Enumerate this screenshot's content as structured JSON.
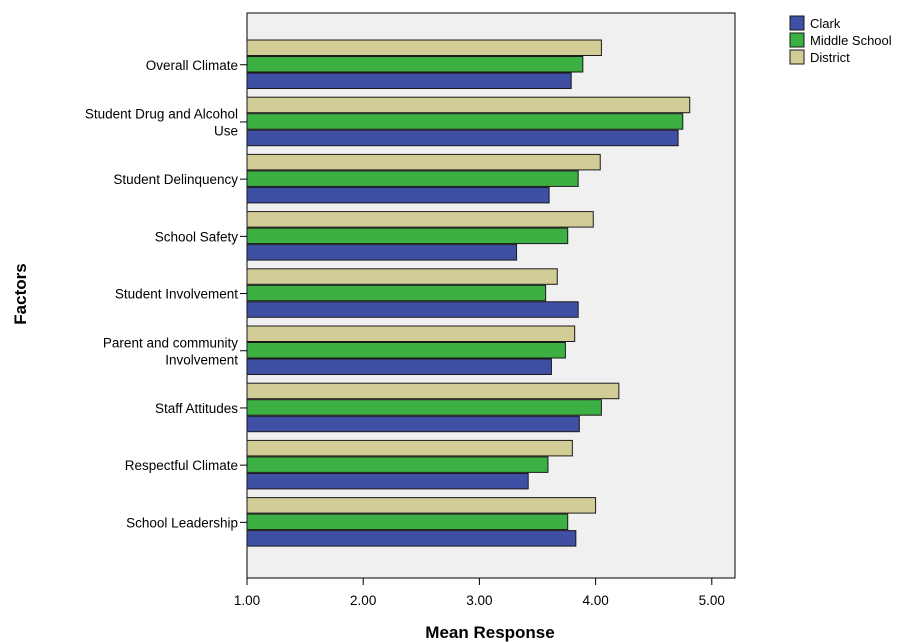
{
  "chart_data": {
    "type": "bar",
    "orientation": "horizontal",
    "title": "",
    "xlabel": "Mean Response",
    "ylabel": "Factors",
    "xlim": [
      1.0,
      5.2
    ],
    "xticks": [
      "1.00",
      "2.00",
      "3.00",
      "4.00",
      "5.00"
    ],
    "xtick_values": [
      1,
      2,
      3,
      4,
      5
    ],
    "grid": false,
    "legend_position": "top-right",
    "plot_background": "#f0f0f0",
    "categories": [
      [
        "Overall Climate"
      ],
      [
        "Student Drug and Alcohol",
        "Use"
      ],
      [
        "Student Delinquency"
      ],
      [
        "School Safety"
      ],
      [
        "Student Involvement"
      ],
      [
        "Parent and community",
        "Involvement"
      ],
      [
        "Staff Attitudes"
      ],
      [
        "Respectful Climate"
      ],
      [
        "School Leadership"
      ]
    ],
    "series": [
      {
        "name": "District",
        "color": "#d2cc96",
        "values": [
          4.05,
          4.81,
          4.04,
          3.98,
          3.67,
          3.82,
          4.2,
          3.8,
          4.0
        ]
      },
      {
        "name": "Middle School",
        "color": "#3cb043",
        "values": [
          3.89,
          4.75,
          3.85,
          3.76,
          3.57,
          3.74,
          4.05,
          3.59,
          3.76
        ]
      },
      {
        "name": "Clark",
        "color": "#3f4fa3",
        "values": [
          3.79,
          4.71,
          3.6,
          3.32,
          3.85,
          3.62,
          3.86,
          3.42,
          3.83
        ]
      }
    ],
    "legend": [
      "Clark",
      "Middle School",
      "District"
    ]
  }
}
